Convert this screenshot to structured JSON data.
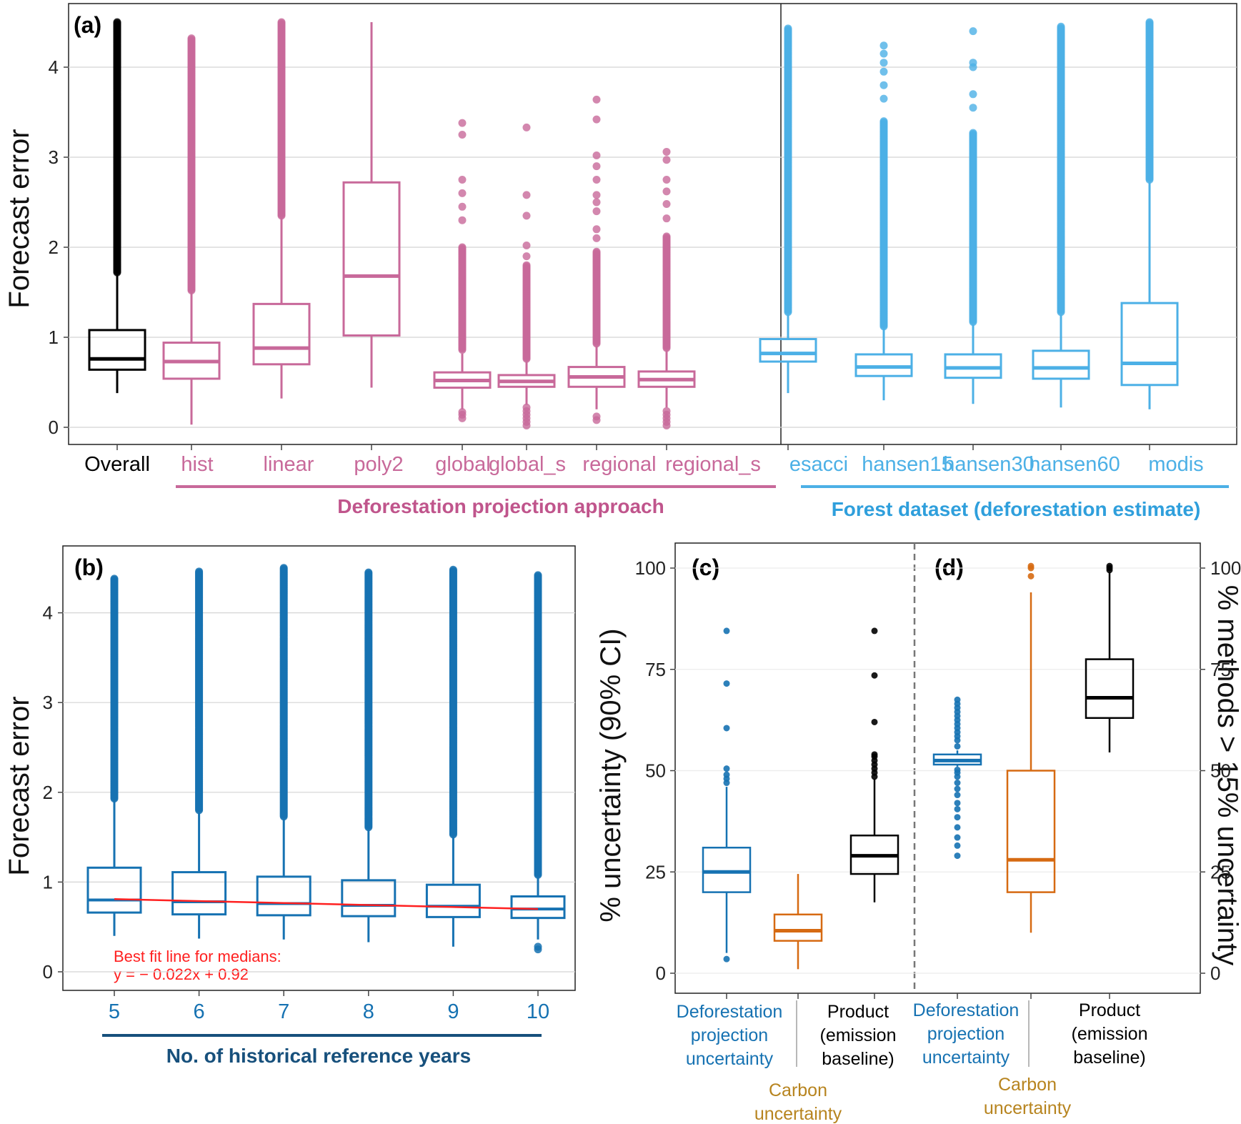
{
  "colors": {
    "overall": "#000000",
    "projection": "#c8699a",
    "forest": "#4cb0e6",
    "years": "#1672b2",
    "carbon": "#d66a12",
    "carbon_label": "#b7841f",
    "product": "#000000",
    "fit_line": "#ff2020",
    "group_projection_title": "#c0558c",
    "group_forest_title": "#2f9fdc",
    "group_years_title": "#17507c"
  },
  "chart_data": [
    {
      "id": "a",
      "panel_label": "(a)",
      "type": "boxplot",
      "ylabel": "Forecast error",
      "ylim": [
        0,
        4.5
      ],
      "yticks": [
        "0",
        "1",
        "2",
        "3",
        "4"
      ],
      "groups": [
        {
          "title": "Deforestation projection approach",
          "members": [
            "hist",
            "linear",
            "poly2",
            "global",
            "global_s",
            "regional",
            "regional_s"
          ]
        },
        {
          "title": "Forest dataset (deforestation estimate)",
          "members": [
            "esacci",
            "hansen15",
            "hansen30",
            "hansen60",
            "modis"
          ]
        }
      ],
      "boxes": [
        {
          "label": "Overall",
          "group": "overall",
          "whisker_low": 0.38,
          "q1": 0.64,
          "median": 0.76,
          "q3": 1.08,
          "whisker_high": 1.7,
          "outliers_from": 1.72,
          "outliers_to": 4.5
        },
        {
          "label": "hist",
          "group": "projection",
          "whisker_low": 0.03,
          "q1": 0.54,
          "median": 0.73,
          "q3": 0.94,
          "whisker_high": 1.5,
          "outliers_from": 1.52,
          "outliers_to": 4.32
        },
        {
          "label": "linear",
          "group": "projection",
          "whisker_low": 0.32,
          "q1": 0.7,
          "median": 0.88,
          "q3": 1.37,
          "whisker_high": 2.33,
          "outliers_from": 2.35,
          "outliers_to": 4.5
        },
        {
          "label": "poly2",
          "group": "projection",
          "whisker_low": 0.44,
          "q1": 1.02,
          "median": 1.68,
          "q3": 2.72,
          "whisker_high": 4.5
        },
        {
          "label": "global",
          "group": "projection",
          "whisker_low": 0.2,
          "q1": 0.44,
          "median": 0.52,
          "q3": 0.61,
          "whisker_high": 0.82,
          "outliers_from": 0.86,
          "outliers_to": 2.0,
          "outliers_low": [
            0.1,
            0.14,
            0.17
          ],
          "extra_outliers": [
            2.3,
            2.45,
            2.6,
            2.75,
            3.25,
            3.38
          ]
        },
        {
          "label": "global_s",
          "group": "projection",
          "whisker_low": 0.25,
          "q1": 0.45,
          "median": 0.51,
          "q3": 0.58,
          "whisker_high": 0.73,
          "outliers_from": 0.76,
          "outliers_to": 1.8,
          "outliers_low": [
            0.02,
            0.06,
            0.1,
            0.14,
            0.18,
            0.22
          ],
          "extra_outliers": [
            1.9,
            2.02,
            2.35,
            2.58,
            3.33
          ]
        },
        {
          "label": "regional",
          "group": "projection",
          "whisker_low": 0.2,
          "q1": 0.45,
          "median": 0.56,
          "q3": 0.67,
          "whisker_high": 0.9,
          "outliers_from": 0.93,
          "outliers_to": 1.95,
          "outliers_low": [
            0.08,
            0.12
          ],
          "extra_outliers": [
            2.1,
            2.2,
            2.4,
            2.5,
            2.58,
            2.75,
            2.9,
            3.02,
            3.42,
            3.64
          ]
        },
        {
          "label": "regional_s",
          "group": "projection",
          "whisker_low": 0.22,
          "q1": 0.45,
          "median": 0.53,
          "q3": 0.62,
          "whisker_high": 0.85,
          "outliers_from": 0.88,
          "outliers_to": 2.12,
          "outliers_low": [
            0.02,
            0.06,
            0.1,
            0.14,
            0.18
          ],
          "extra_outliers": [
            2.32,
            2.48,
            2.62,
            2.75,
            2.97,
            3.06
          ]
        },
        {
          "label": "esacci",
          "group": "forest",
          "whisker_low": 0.38,
          "q1": 0.73,
          "median": 0.82,
          "q3": 0.98,
          "whisker_high": 1.25,
          "outliers_from": 1.28,
          "outliers_to": 4.43
        },
        {
          "label": "hansen15",
          "group": "forest",
          "whisker_low": 0.3,
          "q1": 0.57,
          "median": 0.67,
          "q3": 0.81,
          "whisker_high": 1.1,
          "outliers_from": 1.12,
          "outliers_to": 3.4,
          "extra_outliers": [
            3.65,
            3.8,
            3.95,
            4.05,
            4.15,
            4.24
          ]
        },
        {
          "label": "hansen30",
          "group": "forest",
          "whisker_low": 0.26,
          "q1": 0.55,
          "median": 0.66,
          "q3": 0.81,
          "whisker_high": 1.14,
          "outliers_from": 1.17,
          "outliers_to": 3.27,
          "extra_outliers": [
            3.55,
            3.7,
            4.0,
            4.05,
            4.4
          ]
        },
        {
          "label": "hansen60",
          "group": "forest",
          "whisker_low": 0.22,
          "q1": 0.54,
          "median": 0.66,
          "q3": 0.85,
          "whisker_high": 1.25,
          "outliers_from": 1.28,
          "outliers_to": 4.45
        },
        {
          "label": "modis",
          "group": "forest",
          "whisker_low": 0.2,
          "q1": 0.47,
          "median": 0.71,
          "q3": 1.38,
          "whisker_high": 2.72,
          "outliers_from": 2.75,
          "outliers_to": 4.5
        }
      ]
    },
    {
      "id": "b",
      "panel_label": "(b)",
      "type": "boxplot",
      "ylabel": "Forecast error",
      "xlabel": "No. of historical reference years",
      "ylim": [
        0,
        4.5
      ],
      "yticks": [
        "0",
        "1",
        "2",
        "3",
        "4"
      ],
      "boxes": [
        {
          "label": "5",
          "whisker_low": 0.4,
          "q1": 0.66,
          "median": 0.8,
          "q3": 1.16,
          "whisker_high": 1.9,
          "outliers_from": 1.93,
          "outliers_to": 4.38
        },
        {
          "label": "6",
          "whisker_low": 0.37,
          "q1": 0.64,
          "median": 0.78,
          "q3": 1.11,
          "whisker_high": 1.77,
          "outliers_from": 1.8,
          "outliers_to": 4.46
        },
        {
          "label": "7",
          "whisker_low": 0.36,
          "q1": 0.63,
          "median": 0.76,
          "q3": 1.06,
          "whisker_high": 1.7,
          "outliers_from": 1.73,
          "outliers_to": 4.5
        },
        {
          "label": "8",
          "whisker_low": 0.33,
          "q1": 0.62,
          "median": 0.74,
          "q3": 1.02,
          "whisker_high": 1.58,
          "outliers_from": 1.61,
          "outliers_to": 4.45
        },
        {
          "label": "9",
          "whisker_low": 0.28,
          "q1": 0.61,
          "median": 0.73,
          "q3": 0.97,
          "whisker_high": 1.5,
          "outliers_from": 1.53,
          "outliers_to": 4.48
        },
        {
          "label": "10",
          "whisker_low": 0.36,
          "q1": 0.6,
          "median": 0.7,
          "q3": 0.84,
          "whisker_high": 1.05,
          "outliers_from": 1.08,
          "outliers_to": 4.42,
          "outliers_low": [
            0.25,
            0.28
          ]
        }
      ],
      "fit_line": {
        "slope": -0.022,
        "intercept": 0.92,
        "x_from": 5,
        "x_to": 10
      },
      "annotation": [
        "Best fit line for medians:",
        "y = − 0.022x + 0.92"
      ]
    },
    {
      "id": "c",
      "panel_label": "(c)",
      "type": "boxplot",
      "ylabel": "% uncertainty (90% CI)",
      "ylim": [
        0,
        100
      ],
      "yticks": [
        "0",
        "25",
        "50",
        "75",
        "100"
      ],
      "boxes": [
        {
          "label": [
            "Deforestation",
            "projection",
            "uncertainty"
          ],
          "group": "years",
          "whisker_low": 5,
          "q1": 20,
          "median": 25,
          "q3": 31,
          "whisker_high": 46,
          "outliers": [
            3.5,
            47,
            48,
            49,
            50.5,
            60.5,
            71.5,
            84.5
          ]
        },
        {
          "label": [
            "Carbon",
            "uncertainty"
          ],
          "group": "carbon",
          "label_color": "carbon_label",
          "whisker_low": 1,
          "q1": 8,
          "median": 10.5,
          "q3": 14.5,
          "whisker_high": 24.5,
          "outliers": []
        },
        {
          "label": [
            "Product",
            "(emission",
            "baseline)"
          ],
          "group": "product",
          "whisker_low": 17.5,
          "q1": 24.5,
          "median": 29,
          "q3": 34,
          "whisker_high": 48,
          "outliers": [
            48.5,
            49.5,
            50.5,
            51.5,
            52.5,
            53.5,
            54,
            62,
            73.5,
            84.5
          ]
        }
      ]
    },
    {
      "id": "d",
      "panel_label": "(d)",
      "type": "boxplot",
      "ylabel": "% methods > 15% uncertainty",
      "ylim": [
        0,
        100
      ],
      "yticks": [
        "0",
        "25",
        "50",
        "75",
        "100"
      ],
      "boxes": [
        {
          "label": [
            "Deforestation",
            "projection",
            "uncertainty"
          ],
          "group": "years",
          "whisker_low": 51,
          "q1": 51.5,
          "median": 52.5,
          "q3": 54,
          "whisker_high": 55,
          "outliers": [
            29,
            31.5,
            33.5,
            36,
            38.5,
            40.5,
            42,
            44,
            45.5,
            47,
            48.5,
            49.5,
            50.2,
            56,
            57.5,
            58.5,
            59.5,
            60.5,
            61.5,
            62.5,
            63.5,
            64.5,
            65.5,
            66.5,
            67.5
          ]
        },
        {
          "label": [
            "Carbon",
            "uncertainty"
          ],
          "group": "carbon",
          "label_color": "carbon_label",
          "whisker_low": 10,
          "q1": 20,
          "median": 28,
          "q3": 50,
          "whisker_high": 94,
          "outliers": [
            98,
            100,
            100.5
          ]
        },
        {
          "label": [
            "Product",
            "(emission",
            "baseline)"
          ],
          "group": "product",
          "whisker_low": 54.5,
          "q1": 63,
          "median": 68,
          "q3": 77.5,
          "whisker_high": 99,
          "outliers": [
            99.5,
            100,
            100.5
          ]
        }
      ]
    }
  ]
}
